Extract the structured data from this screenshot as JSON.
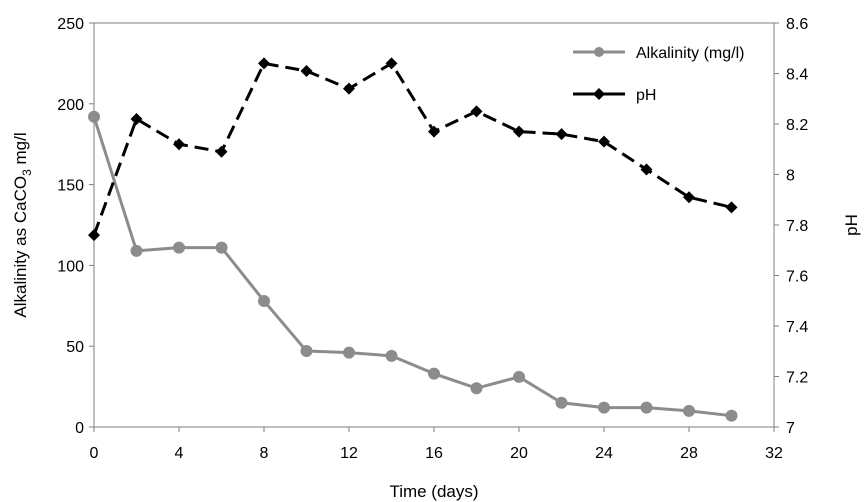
{
  "chart_data": {
    "type": "line",
    "xlabel": "Time (days)",
    "ylabel_left_main": "Alkalinity as CaCO",
    "ylabel_left_sub": "3",
    "ylabel_left_tail": " mg/l",
    "ylabel_right": "pH",
    "xlim": [
      0,
      32
    ],
    "ylim_left": [
      0,
      250
    ],
    "ylim_right": [
      7,
      8.6
    ],
    "x_ticks": [
      "0",
      "4",
      "8",
      "12",
      "16",
      "20",
      "24",
      "28",
      "32"
    ],
    "y_left_ticks": [
      "0",
      "50",
      "100",
      "150",
      "200",
      "250"
    ],
    "y_right_ticks": [
      "7",
      "7.2",
      "7.4",
      "7.6",
      "7.8",
      "8",
      "8.2",
      "8.4",
      "8.6"
    ],
    "grid": false,
    "legend_position": "top-right",
    "series": [
      {
        "name": "Alkalinity (mg/l)",
        "axis": "left",
        "color": "#8c8c8c",
        "line_style": "solid",
        "marker": "circle",
        "x": [
          0,
          2,
          4,
          6,
          8,
          10,
          12,
          14,
          16,
          18,
          20,
          22,
          24,
          26,
          28,
          30
        ],
        "y": [
          192,
          109,
          111,
          111,
          78,
          47,
          46,
          44,
          33,
          24,
          31,
          15,
          12,
          12,
          10,
          7
        ]
      },
      {
        "name": "pH",
        "axis": "right",
        "color": "#000000",
        "line_style": "dashed",
        "marker": "diamond",
        "x": [
          0,
          2,
          4,
          6,
          8,
          10,
          12,
          14,
          16,
          18,
          20,
          22,
          24,
          26,
          28,
          30
        ],
        "y": [
          7.76,
          8.22,
          8.12,
          8.09,
          8.44,
          8.41,
          8.34,
          8.44,
          8.17,
          8.25,
          8.17,
          8.16,
          8.13,
          8.02,
          7.91,
          7.87
        ]
      }
    ]
  }
}
